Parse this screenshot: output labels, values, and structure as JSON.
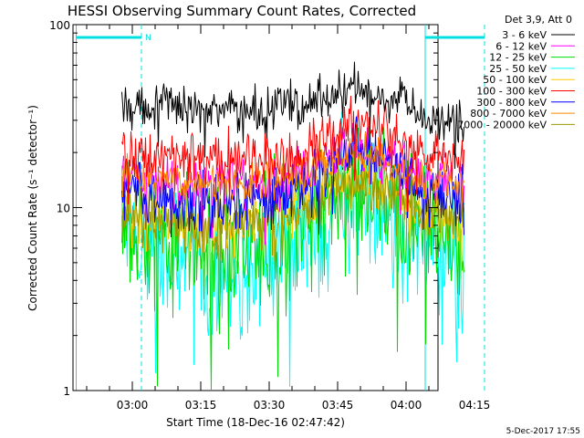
{
  "chart_data": {
    "type": "line",
    "title": "HESSI Observing Summary Count Rates, Corrected",
    "xlabel": "Start Time (18-Dec-16 02:47:42)",
    "ylabel": "Corrected Count Rate (s⁻¹ detector⁻¹)",
    "footer": "5-Dec-2017 17:55",
    "y_scale": "log",
    "ylim": [
      1,
      100
    ],
    "xlim_minutes": [
      -0.7,
      79.3
    ],
    "y_ticks": [
      {
        "value": 1,
        "label": "1"
      },
      {
        "value": 10,
        "label": "10"
      },
      {
        "value": 100,
        "label": "100"
      }
    ],
    "x_ticks": [
      {
        "t": 12.3,
        "label": "03:00"
      },
      {
        "t": 27.3,
        "label": "03:15"
      },
      {
        "t": 42.3,
        "label": "03:30"
      },
      {
        "t": 57.3,
        "label": "03:45"
      },
      {
        "t": 72.3,
        "label": "04:00"
      },
      {
        "t": 87.3,
        "label": "04:15"
      }
    ],
    "legend": {
      "header": "Det 3,9, Att 0",
      "placement": "top-right"
    },
    "series": [
      {
        "name": "3 - 6 keV",
        "color": "#000000",
        "x": [
          10,
          15,
          20,
          25,
          30,
          35,
          40,
          45,
          50,
          55,
          58,
          61,
          64,
          67,
          70,
          73,
          76,
          80,
          82,
          84,
          85
        ],
        "y": [
          36,
          36,
          37,
          35,
          35,
          34,
          34,
          36,
          37,
          39,
          43,
          44,
          42,
          40,
          38,
          34,
          31,
          30,
          30,
          30,
          29
        ],
        "noise": 0.06
      },
      {
        "name": "6 - 12 keV",
        "color": "#ff00ff",
        "x": [
          10,
          15,
          20,
          25,
          30,
          35,
          40,
          45,
          50,
          55,
          58,
          61,
          64,
          67,
          70,
          73,
          76,
          80,
          82,
          84,
          85
        ],
        "y": [
          15,
          14.5,
          14,
          13.5,
          13.5,
          13.5,
          13.5,
          14,
          16,
          18,
          19.5,
          20,
          19.5,
          18.5,
          17,
          15.5,
          14.5,
          14,
          13.5,
          13.5,
          13.5
        ],
        "noise": 0.07
      },
      {
        "name": "12 - 25 keV",
        "color": "#00dd00",
        "x": [
          10,
          15,
          20,
          25,
          30,
          35,
          40,
          45,
          50,
          55,
          58,
          61,
          64,
          67,
          70,
          73,
          76,
          80,
          82,
          84,
          85
        ],
        "y": [
          8,
          7.5,
          7,
          6.5,
          6.2,
          6,
          6,
          6.5,
          8,
          10.5,
          12.5,
          13.5,
          13,
          11.5,
          9.5,
          8,
          7,
          6.5,
          6.5,
          6.3,
          6.2
        ],
        "noise": 0.18
      },
      {
        "name": "25 - 50 keV",
        "color": "#00ffff",
        "x": [
          10,
          15,
          20,
          25,
          30,
          35,
          40,
          45,
          50,
          55,
          58,
          61,
          64,
          67,
          70,
          73,
          76,
          80,
          82,
          84,
          85
        ],
        "y": [
          6.8,
          6.3,
          5.8,
          5,
          4.5,
          4.6,
          4.8,
          5.5,
          7,
          9.5,
          11.5,
          12.5,
          12,
          10.5,
          8.5,
          7,
          6.2,
          6,
          5.8,
          5.7,
          5.6
        ],
        "noise": 0.2
      },
      {
        "name": "50 - 100 keV",
        "color": "#ffcc00",
        "x": [
          10,
          15,
          20,
          25,
          30,
          35,
          40,
          45,
          50,
          55,
          58,
          61,
          64,
          67,
          70,
          73,
          76,
          80,
          82,
          84,
          85
        ],
        "y": [
          9.5,
          9,
          8.7,
          8.5,
          8.2,
          8.2,
          8.5,
          9,
          11,
          13,
          15,
          15.5,
          15,
          13.5,
          12,
          10.5,
          9.5,
          9,
          9,
          8.8,
          8.7
        ],
        "noise": 0.08
      },
      {
        "name": "100 - 300 keV",
        "color": "#ff0000",
        "x": [
          10,
          15,
          20,
          25,
          30,
          35,
          40,
          45,
          50,
          55,
          58,
          61,
          64,
          67,
          70,
          73,
          76,
          80,
          82,
          84,
          85
        ],
        "y": [
          20,
          19.5,
          19,
          18.5,
          18,
          18,
          18.5,
          19,
          21,
          25,
          28,
          29.5,
          29,
          27,
          24,
          21,
          19.5,
          18.5,
          18,
          18,
          18
        ],
        "noise": 0.07
      },
      {
        "name": "300 - 800 keV",
        "color": "#0000ff",
        "x": [
          10,
          15,
          20,
          25,
          30,
          35,
          40,
          45,
          50,
          55,
          58,
          61,
          64,
          67,
          70,
          73,
          76,
          80,
          82,
          84,
          85
        ],
        "y": [
          12.5,
          12,
          11.5,
          11,
          10.5,
          10.5,
          11,
          11.5,
          13.5,
          17,
          20,
          21.5,
          21,
          19,
          16,
          13.5,
          12.5,
          12,
          11.8,
          11.6,
          11.5
        ],
        "noise": 0.08
      },
      {
        "name": "800 - 7000 keV",
        "color": "#ff8800",
        "x": [
          10,
          15,
          20,
          25,
          30,
          35,
          40,
          45,
          50,
          55,
          58,
          61,
          64,
          67,
          70,
          73,
          76,
          80,
          82,
          84,
          85
        ],
        "y": [
          15,
          14.5,
          14.2,
          14,
          13.8,
          13.8,
          14,
          14.5,
          16,
          18,
          19.5,
          20,
          19.5,
          18,
          16.5,
          15,
          14.3,
          14,
          13.8,
          13.6,
          13.5
        ],
        "noise": 0.05
      },
      {
        "name": "7000 - 20000 keV",
        "color": "#999900",
        "x": [
          10,
          15,
          20,
          25,
          30,
          35,
          40,
          45,
          50,
          55,
          58,
          61,
          64,
          67,
          70,
          73,
          76,
          80,
          82,
          84,
          85
        ],
        "y": [
          9,
          8.7,
          8.5,
          8.3,
          8.1,
          8.1,
          8.3,
          8.6,
          10,
          12,
          13.5,
          14,
          13.5,
          12.5,
          11,
          9.7,
          9,
          8.8,
          8.7,
          8.6,
          8.5
        ],
        "noise": 0.08
      }
    ],
    "annotations": {
      "night_color": "#00e0e0",
      "night_markers": [
        {
          "t": 0,
          "style": "solid"
        },
        {
          "t": 14.3,
          "style": "dashed"
        },
        {
          "t": 76.5,
          "style": "solid"
        },
        {
          "t": 89.5,
          "style": "dashed"
        }
      ],
      "night_bars": [
        {
          "t_start": 0,
          "t_end": 14.3
        },
        {
          "t_start": 76.5,
          "t_end": 89.5
        }
      ],
      "flag_label": "N"
    }
  }
}
